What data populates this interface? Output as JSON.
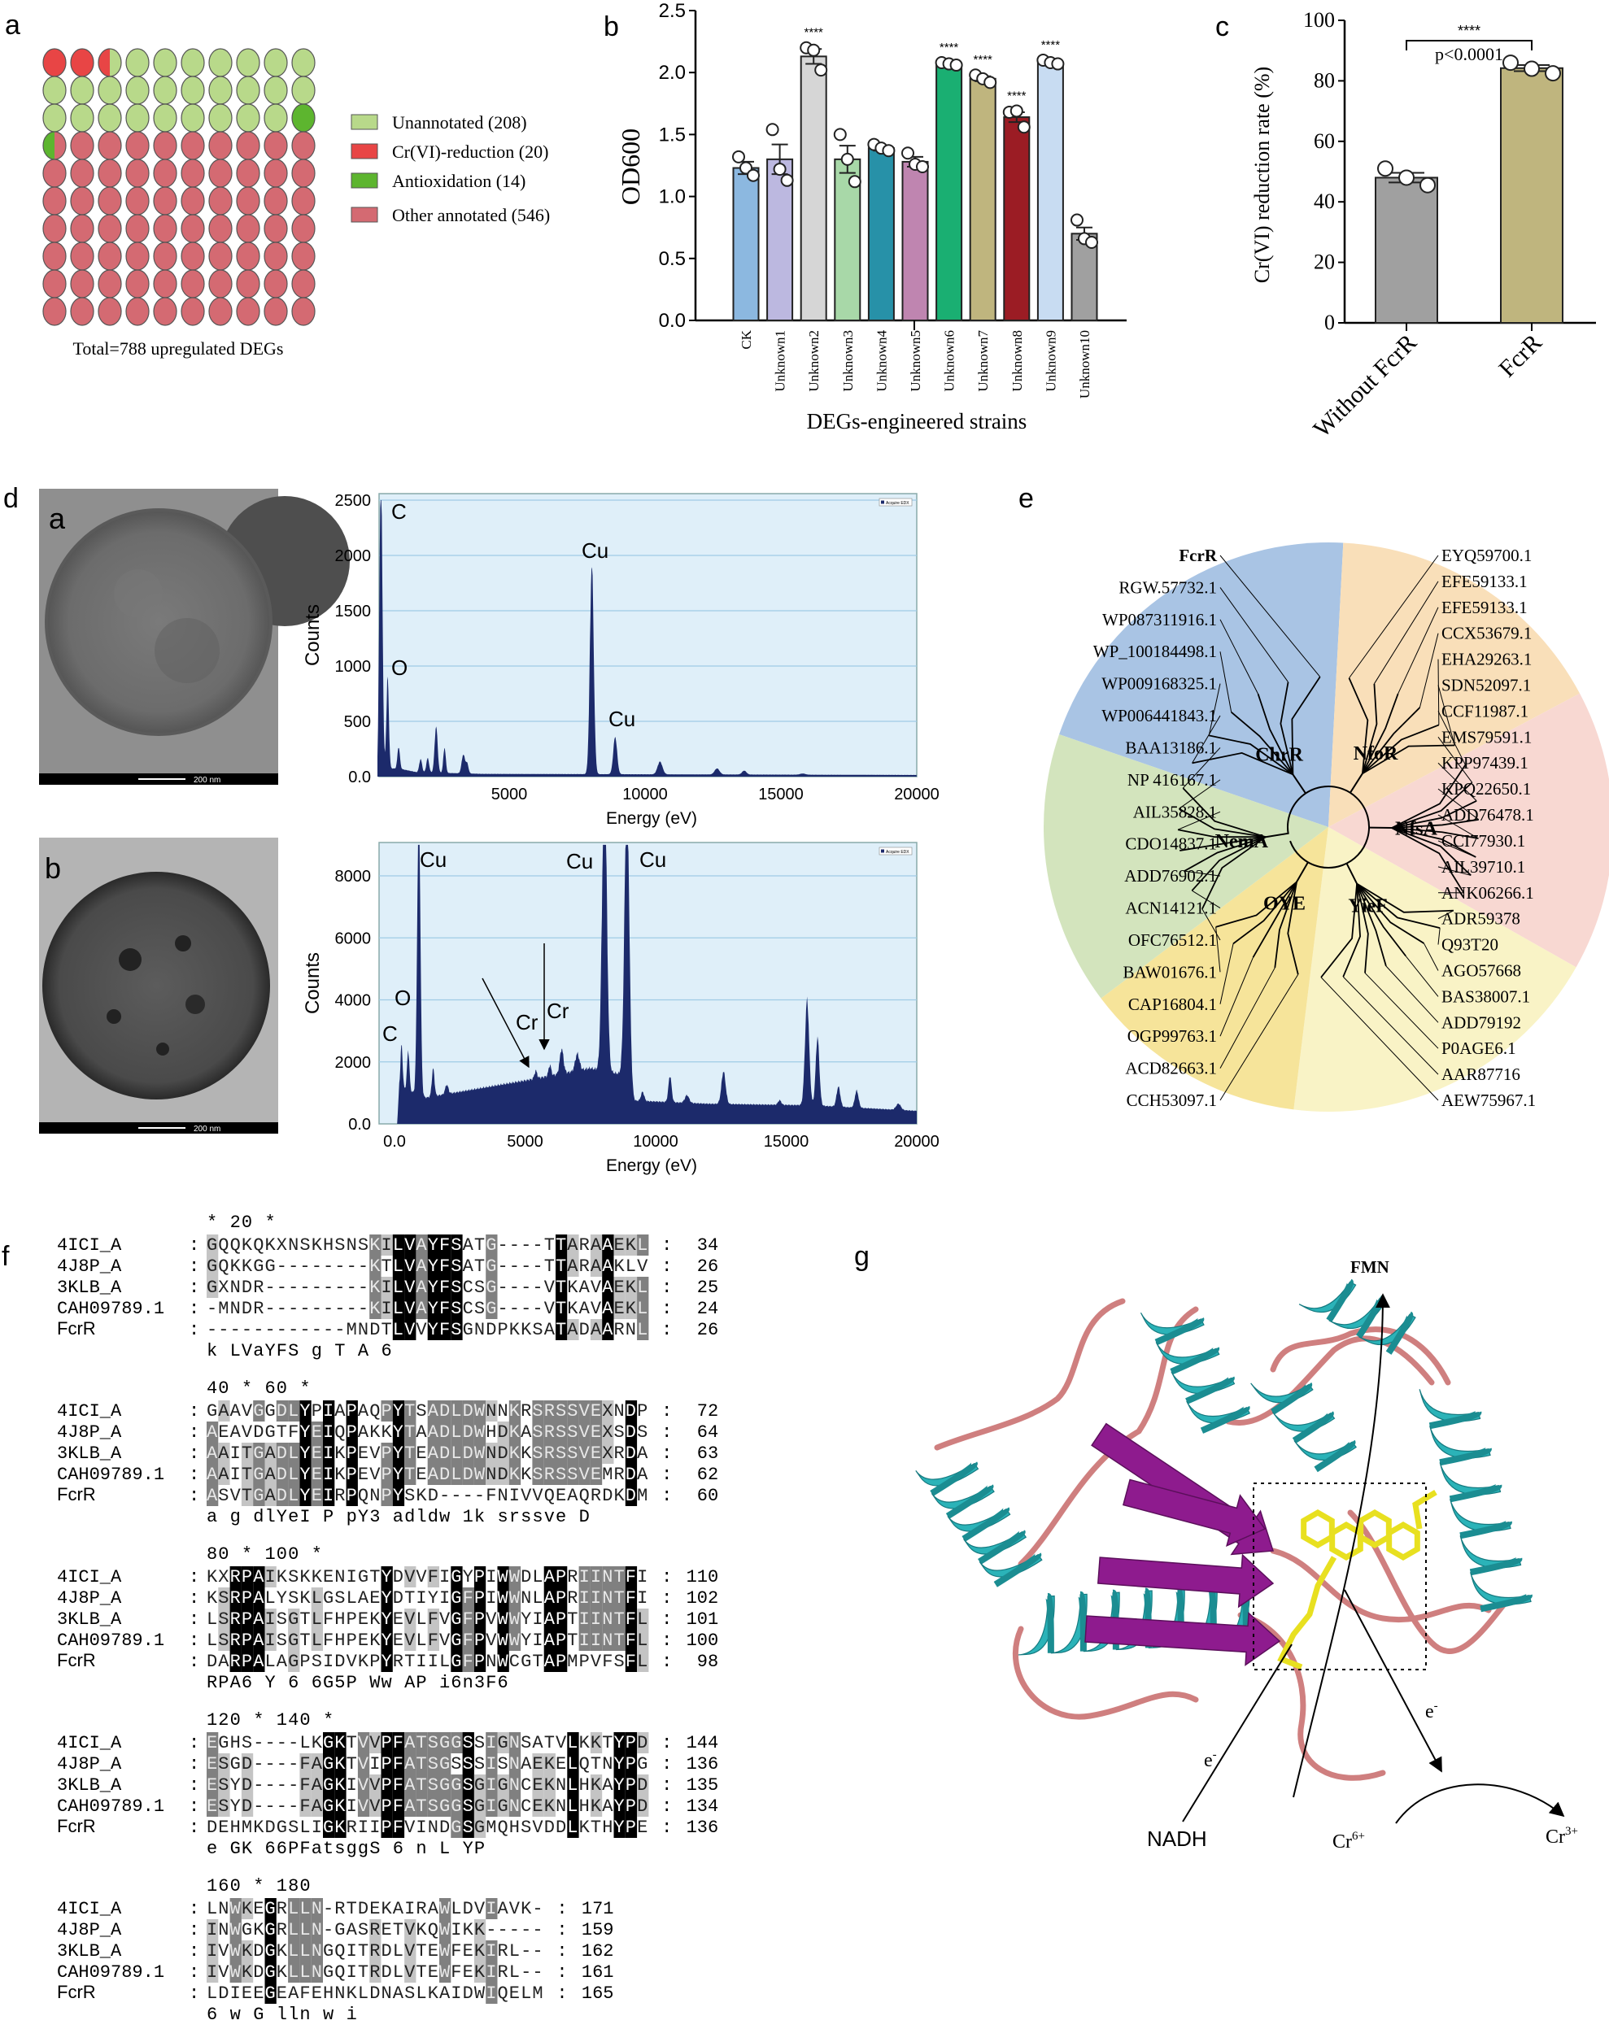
{
  "panel_labels": {
    "a": "a",
    "b": "b",
    "c": "c",
    "d": "d",
    "e": "e",
    "f": "f",
    "g": "g"
  },
  "chart_data": [
    {
      "id": "a",
      "type": "waffle",
      "order": [
        "Cr(VI)-reduction",
        "Unannotated",
        "Antioxidation",
        "Other annotated"
      ],
      "legend": [
        {
          "label": "Unannotated (208)",
          "key": "Unannotated",
          "value": 208,
          "color": "#b8d98a"
        },
        {
          "label": "Cr(VI)-reduction (20)",
          "key": "Cr(VI)-reduction",
          "value": 20,
          "color": "#e84545"
        },
        {
          "label": "Antioxidation (14)",
          "key": "Antioxidation",
          "value": 14,
          "color": "#5db52f"
        },
        {
          "label": "Other annotated (546)",
          "key": "Other annotated",
          "value": 546,
          "color": "#d46a72"
        }
      ],
      "total": 788,
      "caption": "Total=788 upregulated DEGs"
    },
    {
      "id": "b",
      "type": "bar",
      "ylabel": "OD600",
      "xlabel": "DEGs-engineered strains",
      "ylim": [
        0,
        2.5
      ],
      "yticks": [
        "0.0",
        "0.5",
        "1.0",
        "1.5",
        "2.0",
        "2.5"
      ],
      "significance": "****",
      "categories": [
        "CK",
        "Unknown1",
        "Unknown2",
        "Unknown3",
        "Unknown4",
        "Unknown5",
        "Unknown6",
        "Unknown7",
        "Unknown8",
        "Unknown9",
        "Unknown10"
      ],
      "values": [
        1.23,
        1.3,
        2.13,
        1.3,
        1.39,
        1.28,
        2.07,
        1.95,
        1.64,
        2.08,
        0.7
      ],
      "sem": [
        0.05,
        0.12,
        0.06,
        0.11,
        0.02,
        0.04,
        0.01,
        0.02,
        0.04,
        0.01,
        0.05
      ],
      "points": [
        [
          1.32,
          1.23,
          1.17
        ],
        [
          1.54,
          1.22,
          1.13
        ],
        [
          2.2,
          2.18,
          2.02
        ],
        [
          1.5,
          1.3,
          1.12
        ],
        [
          1.42,
          1.39,
          1.37
        ],
        [
          1.35,
          1.26,
          1.24
        ],
        [
          2.08,
          2.07,
          2.06
        ],
        [
          1.98,
          1.95,
          1.92
        ],
        [
          1.68,
          1.69,
          1.56
        ],
        [
          2.1,
          2.08,
          2.07
        ],
        [
          0.81,
          0.66,
          0.63
        ]
      ],
      "significant": [
        false,
        false,
        true,
        false,
        false,
        false,
        true,
        true,
        true,
        true,
        false
      ],
      "colors": [
        "#8cb8e0",
        "#bcb8e0",
        "#d6d6d6",
        "#a8d8a8",
        "#2791a8",
        "#bf85b0",
        "#1aaf72",
        "#bfb57e",
        "#9b1c24",
        "#c8dcf2",
        "#a0a0a0"
      ]
    },
    {
      "id": "c",
      "type": "bar",
      "ylabel": "Cr(VI) reduction rate (%)",
      "ylim": [
        0,
        100
      ],
      "yticks": [
        "0",
        "20",
        "40",
        "60",
        "80",
        "100"
      ],
      "categories": [
        "Without FcrR",
        "FcrR"
      ],
      "values": [
        48.0,
        84.2
      ],
      "sem": [
        1.6,
        1.0
      ],
      "points": [
        [
          51.0,
          48.0,
          45.5
        ],
        [
          86.0,
          84.0,
          82.5
        ]
      ],
      "colors": [
        "#a0a0a0",
        "#bfb57e"
      ],
      "significance": "****",
      "pvalue": "p<0.0001"
    },
    {
      "id": "d-a",
      "type": "area",
      "ylabel": "Counts",
      "xlabel": "Energy (eV)",
      "xlim": [
        0,
        20000
      ],
      "ylim": [
        0,
        2500
      ],
      "yticks": [
        "0.0",
        "500",
        "1000",
        "1500",
        "2000",
        "2500"
      ],
      "xticks": [
        "5000",
        "10000",
        "15000",
        "20000"
      ],
      "legend": "Acquire EDX",
      "baseline": [
        [
          150,
          0
        ],
        [
          200,
          80
        ],
        [
          1000,
          70
        ],
        [
          1600,
          40
        ],
        [
          4000,
          25
        ],
        [
          20000,
          15
        ]
      ],
      "peaks": [
        [
          277,
          2700,
          55
        ],
        [
          525,
          820,
          45
        ],
        [
          930,
          200,
          45
        ],
        [
          1740,
          120,
          50
        ],
        [
          2000,
          130,
          50
        ],
        [
          2310,
          420,
          55
        ],
        [
          2620,
          230,
          45
        ],
        [
          3310,
          170,
          60
        ],
        [
          3450,
          90,
          50
        ],
        [
          8040,
          1900,
          70
        ],
        [
          8900,
          340,
          70
        ],
        [
          10550,
          115,
          90
        ],
        [
          12650,
          55,
          90
        ],
        [
          13650,
          35,
          80
        ],
        [
          15800,
          10,
          100
        ]
      ],
      "annotations": [
        {
          "text": "C",
          "x": 277
        },
        {
          "text": "O",
          "x": 525
        },
        {
          "text": "Cu",
          "x": 8040
        },
        {
          "text": "Cu",
          "x": 8900
        }
      ]
    },
    {
      "id": "d-b",
      "type": "area",
      "ylabel": "Counts",
      "xlabel": "Energy (eV)",
      "xlim": [
        -400,
        20000
      ],
      "ylim": [
        0,
        9000
      ],
      "yticks": [
        "0.0",
        "2000",
        "4000",
        "6000",
        "8000"
      ],
      "xticks": [
        "0.0",
        "5000",
        "10000",
        "15000",
        "20000"
      ],
      "legend": "Acquire EDX",
      "baseline": [
        [
          100,
          0
        ],
        [
          180,
          1200
        ],
        [
          1200,
          850
        ],
        [
          5000,
          1400
        ],
        [
          7500,
          1800
        ],
        [
          8700,
          1600
        ],
        [
          9200,
          750
        ],
        [
          12000,
          650
        ],
        [
          16000,
          600
        ],
        [
          20000,
          420
        ]
      ],
      "peaks": [
        [
          270,
          1400,
          40
        ],
        [
          525,
          1300,
          45
        ],
        [
          930,
          9500,
          60
        ],
        [
          1480,
          900,
          50
        ],
        [
          2000,
          300,
          60
        ],
        [
          5410,
          250,
          50
        ],
        [
          5950,
          350,
          50
        ],
        [
          6400,
          800,
          70
        ],
        [
          7000,
          550,
          80
        ],
        [
          8040,
          9500,
          90
        ],
        [
          8900,
          9500,
          90
        ],
        [
          9500,
          300,
          60
        ],
        [
          10550,
          850,
          60
        ],
        [
          11200,
          250,
          80
        ],
        [
          12600,
          1050,
          80
        ],
        [
          14750,
          150,
          60
        ],
        [
          15800,
          3400,
          80
        ],
        [
          16200,
          2200,
          70
        ],
        [
          17000,
          650,
          70
        ],
        [
          17700,
          550,
          70
        ],
        [
          19300,
          200,
          90
        ]
      ],
      "annotations": [
        {
          "text": "Cu",
          "x": 930
        },
        {
          "text": "Cu",
          "x": 8040
        },
        {
          "text": "Cu",
          "x": 8900
        },
        {
          "text": "O",
          "x": 525
        },
        {
          "text": "C",
          "x": 270
        },
        {
          "text": "Cr",
          "x": 5410
        },
        {
          "text": "Cr",
          "x": 5950
        }
      ]
    }
  ],
  "panel_d": {
    "images": [
      {
        "label": "a",
        "scale_bar": "200 nm"
      },
      {
        "label": "b",
        "scale_bar": "200 nm"
      }
    ]
  },
  "panel_e": {
    "clades": [
      {
        "name": "ChrR",
        "color": "#a9c4e4",
        "start": 289,
        "end": 3,
        "leaves": [
          "WP006441843.1",
          "WP009168325.1",
          "WP_100184498.1",
          "WP087311916.1",
          "RGW.57732.1",
          "FcrR"
        ],
        "bold_leaf": "FcrR"
      },
      {
        "name": "NfoR",
        "color": "#f9dfb9",
        "start": 3,
        "end": 62,
        "leaves": [
          "EYQ59700.1",
          "EFE59133.1",
          "EFE59133.1",
          "CCX53679.1",
          "EHA29263.1",
          "SDN52097.1"
        ]
      },
      {
        "name": "NfsA",
        "color": "#f8d8d2",
        "start": 62,
        "end": 119.5,
        "leaves": [
          "CCF11987.1",
          "EMS79591.1",
          "KPP97439.1",
          "KPQ22650.1",
          "ADD76478.1",
          "CCI77930.1",
          "AIL39710.1",
          "ANK06266.1"
        ]
      },
      {
        "name": "YieF",
        "color": "#f9f3c6",
        "start": 119.5,
        "end": 187,
        "leaves": [
          "ADR59378",
          "Q93T20",
          "AGO57668",
          "BAS38007.1",
          "ADD79192",
          "P0AGE6.1",
          "AAR87716",
          "AEW75967.1"
        ]
      },
      {
        "name": "OYE",
        "color": "#f6e49a",
        "start": 187,
        "end": 233,
        "leaves": [
          "CCH53097.1",
          "ACD82663.1",
          "OGP99763.1",
          "CAP16804.1",
          "BAW01676.1"
        ]
      },
      {
        "name": "NemA",
        "color": "#d3e4bd",
        "start": 233,
        "end": 289,
        "leaves": [
          "OFC76512.1",
          "ACN14121.1",
          "ADD76902.1",
          "CDO14837.1",
          "AIL35828.1",
          "NP 416167.1",
          "BAA13186.1"
        ]
      }
    ]
  },
  "panel_f": {
    "blocks": [
      {
        "header": "         *        20         *",
        "rows": [
          {
            "name": "4ICI_A",
            "seq": "GQQKQKXNSKHSNSKILVAYFSATG----TTARAAEKL",
            "end": "34"
          },
          {
            "name": "4J8P_A",
            "seq": "GQKKGG--------KTLVAYFSATG----TTARAAKLV",
            "end": "26"
          },
          {
            "name": "3KLB_A",
            "seq": "GXNDR---------KILVAYFSCSG----VTKAVAEKL",
            "end": "25"
          },
          {
            "name": "CAH09789.1",
            "seq": "-MNDR---------KILVAYFSCSG----VTKAVAEKL",
            "end": "24"
          },
          {
            "name": "FcrR",
            "seq": "------------MNDTLVVYFSGNDPKKSATADAARNL",
            "end": "26"
          }
        ],
        "consensus": "              k LVaYFS  g     T   A  6"
      },
      {
        "header": "40         *        60         *",
        "rows": [
          {
            "name": "4ICI_A",
            "seq": "GAAVGGDLYPIAPAQPYTSADLDWNNKRSRSSVEXNDP",
            "end": "72"
          },
          {
            "name": "4J8P_A",
            "seq": "AEAVDGTFYEIQPAKKYTAADLDWHDKASRSSVEXSDS",
            "end": "64"
          },
          {
            "name": "3KLB_A",
            "seq": "AAITGADLYEIKPEVPYTEADLDWNDKKSRSSVEXRDA",
            "end": "63"
          },
          {
            "name": "CAH09789.1",
            "seq": "AAITGADLYEIKPEVPYTEADLDWNDKKSRSSVEMRDA",
            "end": "62"
          },
          {
            "name": "FcrR",
            "seq": "ASVTGADLYEIRPQNPYSKD----FNIVVQEAQRDKDM",
            "end": "60"
          }
        ],
        "consensus": "a   g dlYeI P  pY3 adldw 1k srssve  D"
      },
      {
        "header": "  80         *       100         *",
        "rows": [
          {
            "name": "4ICI_A",
            "seq": "KXRPAIKSKKENIGTYDVVFIGYPIWWDLAPRIINTFI",
            "end": "110"
          },
          {
            "name": "4J8P_A",
            "seq": "KSRPALYSKLGSLAEYDTIYIGFPIWWNLAPRIINTFI",
            "end": "102"
          },
          {
            "name": "3KLB_A",
            "seq": "LSRPAISGTLFHPEKYEVLFVGFPVWWYIAPTIINTFL",
            "end": "101"
          },
          {
            "name": "CAH09789.1",
            "seq": "LSRPAISGTLFHPEKYEVLFVGFPVWWYIAPTIINTFL",
            "end": "100"
          },
          {
            "name": "FcrR",
            "seq": "DARPALAGPSIDVKPYRTIILGFPNWCGTAPMPVFSFL",
            "end": "98"
          }
        ],
        "consensus": "  RPA6         Y  6 6G5P Ww  AP i6n3F6"
      },
      {
        "header": "   120         *       140         *",
        "rows": [
          {
            "name": "4ICI_A",
            "seq": "EGHS----LKGKTVVPFATSGGSSIGNSATVLKKTYPD",
            "end": "144"
          },
          {
            "name": "4J8P_A",
            "seq": "ESGD----FAGKTVIPFATSGSSSISNAEKELQTNYPG",
            "end": "136"
          },
          {
            "name": "3KLB_A",
            "seq": "ESYD----FAGKIVVPFATSGGSGIGNCEKNLHKAYPD",
            "end": "135"
          },
          {
            "name": "CAH09789.1",
            "seq": "ESYD----FAGKIVVPFATSGGSGIGNCEKNLHKAYPD",
            "end": "134"
          },
          {
            "name": "FcrR",
            "seq": "DEHMKDGSLIGKRIIPFVINDGSGMQHSVDDLKTHYPE",
            "end": "136"
          }
        ],
        "consensus": "e         GK 66PFatsggS 6 n    L   YP"
      },
      {
        "header": "     160         *       180",
        "rows": [
          {
            "name": "4ICI_A",
            "seq": "LNWKEGRLLN-RTDEKAIRAWLDVIAVK-",
            "end": "171"
          },
          {
            "name": "4J8P_A",
            "seq": "INWGKGRLLN-GASRETVKQWIKK-----",
            "end": "159"
          },
          {
            "name": "3KLB_A",
            "seq": "IVWKDGKLLNGQITRDLVTEWFEKIRL--",
            "end": "162"
          },
          {
            "name": "CAH09789.1",
            "seq": "IVWKDGKLLNGQITRDLVTEWFEKIRL--",
            "end": "161"
          },
          {
            "name": "FcrR",
            "seq": "LDIEEGEAFEHNKLDNASLKAIDWIQELM",
            "end": "165"
          }
        ],
        "consensus": "6 w  G lln          w   i"
      }
    ]
  },
  "panel_g": {
    "fmn": "FMN",
    "nadh": "NADH",
    "electron": {
      "base": "e",
      "sup": "-"
    },
    "cr6": {
      "base": "Cr",
      "sup": "6+"
    },
    "cr3": {
      "base": "Cr",
      "sup": "3+"
    },
    "colors": {
      "helix": "#2bb3b8",
      "strand": "#8e1b8e",
      "loop": "#cf7f7f",
      "ligand": "#e8e020"
    }
  }
}
